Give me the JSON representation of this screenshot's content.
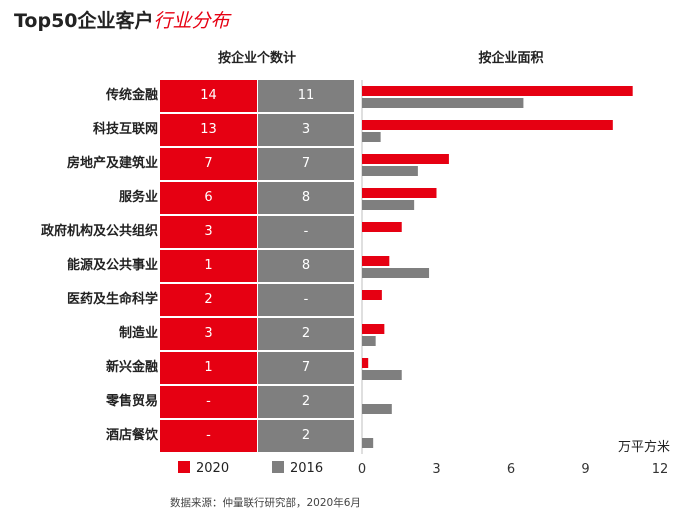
{
  "title": {
    "main": "Top50企业客户",
    "highlight": "行业分布"
  },
  "left_header": "按企业个数计",
  "right_header": "按企业面积",
  "legend": [
    {
      "name": "2020",
      "color": "#e60012"
    },
    {
      "name": "2016",
      "color": "#7f7f7f"
    }
  ],
  "unit": "万平方米",
  "source": "数据来源：仲量联行研究部，2020年6月",
  "chart_data": [
    {
      "type": "table",
      "title": "按企业个数计",
      "columns": [
        "2020",
        "2016"
      ],
      "rows": [
        {
          "category": "传统金融",
          "v2020": "14",
          "v2016": "11"
        },
        {
          "category": "科技互联网",
          "v2020": "13",
          "v2016": "3"
        },
        {
          "category": "房地产及建筑业",
          "v2020": "7",
          "v2016": "7"
        },
        {
          "category": "服务业",
          "v2020": "6",
          "v2016": "8"
        },
        {
          "category": "政府机构及公共组织",
          "v2020": "3",
          "v2016": "-"
        },
        {
          "category": "能源及公共事业",
          "v2020": "1",
          "v2016": "8"
        },
        {
          "category": "医药及生命科学",
          "v2020": "2",
          "v2016": "-"
        },
        {
          "category": "制造业",
          "v2020": "3",
          "v2016": "2"
        },
        {
          "category": "新兴金融",
          "v2020": "1",
          "v2016": "7"
        },
        {
          "category": "零售贸易",
          "v2020": "-",
          "v2016": "2"
        },
        {
          "category": "酒店餐饮",
          "v2020": "-",
          "v2016": "2"
        }
      ]
    },
    {
      "type": "bar",
      "title": "按企业面积",
      "orientation": "horizontal",
      "categories": [
        "传统金融",
        "科技互联网",
        "房地产及建筑业",
        "服务业",
        "政府机构及公共组织",
        "能源及公共事业",
        "医药及生命科学",
        "制造业",
        "新兴金融",
        "零售贸易",
        "酒店餐饮"
      ],
      "series": [
        {
          "name": "2020",
          "color": "#e60012",
          "values": [
            10.9,
            10.1,
            3.5,
            3.0,
            1.6,
            1.1,
            0.8,
            0.9,
            0.25,
            0,
            0
          ]
        },
        {
          "name": "2016",
          "color": "#7f7f7f",
          "values": [
            6.5,
            0.75,
            2.25,
            2.1,
            0,
            2.7,
            0,
            0.55,
            1.6,
            1.2,
            0.45
          ]
        }
      ],
      "xlim": [
        0,
        12
      ],
      "xticks": [
        "0",
        "3",
        "6",
        "9",
        "12"
      ],
      "xlabel": "万平方米"
    }
  ]
}
